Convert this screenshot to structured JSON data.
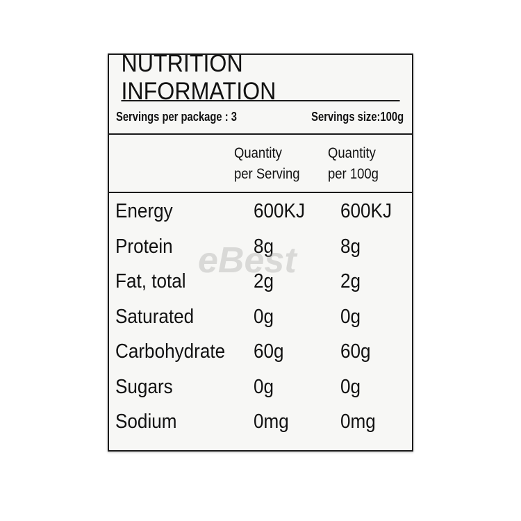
{
  "label": {
    "title": "NUTRITION INFORMATION",
    "servings_per_package": "Servings per package : 3",
    "serving_size": "Servings size:100g",
    "columns": {
      "per_serving": [
        "Quantity",
        "per Serving"
      ],
      "per_100g": [
        "Quantity",
        "per 100g"
      ]
    },
    "rows": [
      {
        "nutrient": "Energy",
        "per_serving": "600KJ",
        "per_100g": "600KJ"
      },
      {
        "nutrient": "Protein",
        "per_serving": "8g",
        "per_100g": "8g"
      },
      {
        "nutrient": "Fat, total",
        "per_serving": "2g",
        "per_100g": "2g"
      },
      {
        "nutrient": "Saturated",
        "per_serving": "0g",
        "per_100g": "0g"
      },
      {
        "nutrient": "Carbohydrate",
        "per_serving": "60g",
        "per_100g": "60g"
      },
      {
        "nutrient": "Sugars",
        "per_serving": "0g",
        "per_100g": "0g"
      },
      {
        "nutrient": "Sodium",
        "per_serving": "0mg",
        "per_100g": "0mg"
      }
    ]
  },
  "watermark": "eBest"
}
